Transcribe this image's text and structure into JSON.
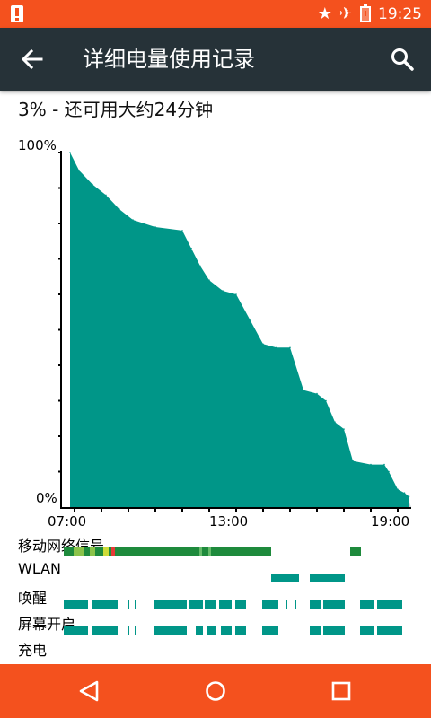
{
  "status_bar": {
    "time": "19:25",
    "icons": [
      "alert-icon",
      "star-icon",
      "airplane-icon",
      "battery-icon"
    ]
  },
  "toolbar": {
    "title": "详细电量使用记录",
    "back_icon": "arrow-left-icon",
    "search_icon": "search-icon"
  },
  "summary": "3% - 还可用大约24分钟",
  "chart_data": {
    "type": "area",
    "y_labels": [
      "100%",
      "0%"
    ],
    "x_labels": [
      "07:00",
      "13:00",
      "19:00"
    ],
    "ylim": [
      0,
      100
    ],
    "x": [
      "06:50",
      "07:10",
      "07:40",
      "08:10",
      "08:40",
      "09:10",
      "10:00",
      "11:00",
      "11:20",
      "11:40",
      "12:00",
      "12:30",
      "13:00",
      "13:30",
      "14:00",
      "14:30",
      "15:00",
      "15:30",
      "16:00",
      "16:20",
      "16:40",
      "17:00",
      "17:20",
      "18:00",
      "18:30",
      "18:40",
      "19:00",
      "19:15",
      "19:25"
    ],
    "values": [
      100,
      95,
      91,
      88,
      84,
      81,
      79,
      78,
      73,
      68,
      64,
      61,
      60,
      53,
      46,
      45,
      45,
      33,
      32,
      30,
      24,
      22,
      13,
      12,
      12,
      10,
      5,
      4,
      3
    ],
    "colors": {
      "fill": "#009688",
      "axis": "#000000",
      "projection": "#cfd8dc"
    }
  },
  "rows": [
    {
      "label": "移动网络信号"
    },
    {
      "label": "WLAN"
    },
    {
      "label": "唤醒"
    },
    {
      "label": "屏幕开启"
    },
    {
      "label": "充电"
    }
  ],
  "colors": {
    "accent": "#f4511e",
    "toolbar": "#263238",
    "chart_fill": "#009688",
    "signal_green": "#1e8a3c"
  },
  "nav": {
    "back_icon": "triangle-back-icon",
    "home_icon": "circle-home-icon",
    "recents_icon": "square-recents-icon"
  }
}
